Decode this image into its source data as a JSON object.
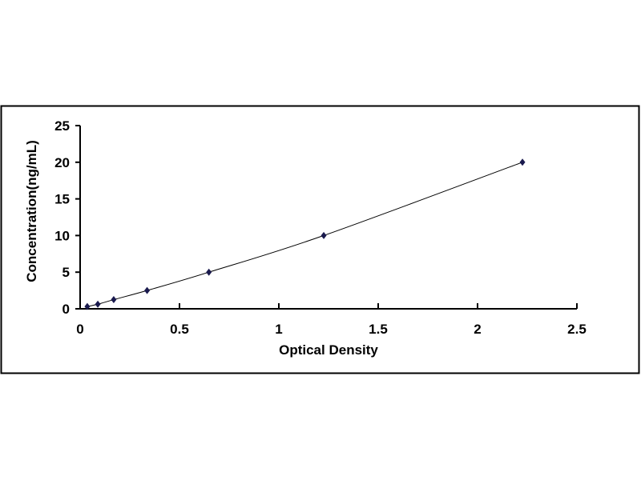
{
  "chart_data": {
    "type": "scatter",
    "title": "",
    "xlabel": "Optical Density",
    "ylabel": "Concentration(ng/mL)",
    "xlim": [
      0,
      2.5
    ],
    "ylim": [
      0,
      25
    ],
    "xticks": [
      "0",
      "0.5",
      "1",
      "1.5",
      "2",
      "2.5"
    ],
    "yticks": [
      "0",
      "5",
      "10",
      "15",
      "20",
      "25"
    ],
    "grid": false,
    "legend": "none",
    "marker_color": "#1a1a4e",
    "line_color": "#000000",
    "x": [
      0.036,
      0.089,
      0.169,
      0.337,
      0.648,
      1.226,
      2.226
    ],
    "y": [
      0.312,
      0.625,
      1.25,
      2.5,
      5,
      10,
      20
    ]
  }
}
